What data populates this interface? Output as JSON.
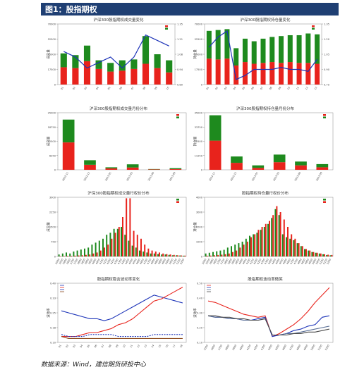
{
  "figure_title": "图1：股指期权",
  "source": "数据来源：Wind，建信期货研投中心",
  "colors": {
    "red": "#e8231c",
    "green": "#1e8a1e",
    "blue": "#1c33b8",
    "brown": "#8b4a1c"
  },
  "chart_data": [
    {
      "type": "bar",
      "title": "沪深300股指期权成交量变化",
      "ylabel": "成交量",
      "y2label": "",
      "categories": [
        "01",
        "02",
        "03",
        "04",
        "05",
        "06",
        "07",
        "08",
        "09",
        "10"
      ],
      "series": [
        {
          "values": [
            20000,
            19000,
            27000,
            18000,
            15000,
            16000,
            18000,
            24000,
            19000,
            14000
          ]
        },
        {
          "values": [
            16000,
            15000,
            18000,
            10000,
            10000,
            12000,
            11000,
            32000,
            16000,
            14000
          ]
        },
        {
          "values": [
            1.1,
            1.05,
            0.95,
            1.0,
            1.05,
            0.95,
            1.05,
            1.25,
            1.2,
            1.15
          ]
        }
      ],
      "ylim": [
        0,
        70000
      ],
      "y2lim": [
        0.8,
        1.35
      ]
    },
    {
      "type": "bar",
      "title": "沪深300股指期权持仓量变化",
      "ylabel": "持仓量",
      "y2label": "",
      "categories": [
        "01",
        "02",
        "03",
        "04",
        "05",
        "06",
        "07",
        "08",
        "09",
        "10",
        "11",
        "12",
        "13"
      ],
      "series": [
        {
          "values": [
            30000,
            29000,
            30000,
            22000,
            26000,
            24000,
            25000,
            26000,
            25000,
            26000,
            25000,
            25000,
            24000
          ]
        },
        {
          "values": [
            32000,
            34000,
            34000,
            20000,
            27000,
            26000,
            28000,
            29000,
            31000,
            31000,
            32000,
            34000,
            34000
          ]
        },
        {
          "values": [
            1.12,
            1.22,
            1.28,
            0.8,
            0.84,
            0.9,
            0.9,
            0.9,
            0.92,
            0.9,
            0.9,
            0.88,
            1.0
          ]
        }
      ],
      "ylim": [
        0,
        70000
      ],
      "y2lim": [
        0.75,
        1.35
      ]
    },
    {
      "type": "bar",
      "title": "沪深300股指期权成交量月份分布",
      "ylabel": "成交量",
      "categories": [
        "2022-11",
        "2022-12",
        "2023-01",
        "2023-03",
        "2023-06",
        "2023-09"
      ],
      "series": [
        {
          "values": [
            12000,
            2200,
            600,
            1000,
            200,
            300
          ]
        },
        {
          "values": [
            10000,
            2000,
            500,
            1400,
            150,
            400
          ]
        }
      ],
      "ylim": [
        0,
        25000
      ]
    },
    {
      "type": "bar",
      "title": "沪深300股指期权持仓量月份分布",
      "ylabel": "持仓量",
      "categories": [
        "2022-11",
        "2022-12",
        "2023-01",
        "2023-03",
        "2023-06",
        "2023-09"
      ],
      "series": [
        {
          "values": [
            23000,
            5500,
            1500,
            6000,
            3500,
            2000
          ]
        },
        {
          "values": [
            20000,
            5000,
            2000,
            6000,
            3000,
            2500
          ]
        }
      ],
      "ylim": [
        0,
        45000
      ]
    },
    {
      "type": "bar",
      "title": "沪深300股指期权成交量行权价分布",
      "ylabel": "成交量",
      "categories": [
        "3500",
        "3550",
        "3600",
        "3650",
        "3700",
        "3750",
        "3800",
        "3850",
        "3900",
        "3950",
        "4000",
        "4050",
        "4100",
        "4150",
        "4200",
        "4250",
        "4300",
        "4350",
        "4400",
        "4450",
        "4500",
        "4550",
        "4600",
        "4650",
        "4700",
        "4750",
        "4800",
        "4850",
        "4900",
        "4950",
        "5000",
        "5050",
        "5100",
        "5150",
        "5200"
      ],
      "series": [
        {
          "values": [
            100,
            150,
            200,
            150,
            250,
            300,
            350,
            400,
            450,
            600,
            700,
            800,
            900,
            1100,
            1200,
            1400,
            1400,
            1500,
            1100,
            800,
            550,
            450,
            300,
            250,
            200,
            150,
            150,
            120,
            100,
            100,
            80,
            60,
            60,
            50,
            40
          ]
        },
        {
          "values": [
            20,
            20,
            30,
            30,
            40,
            50,
            60,
            80,
            100,
            150,
            200,
            300,
            450,
            600,
            900,
            1200,
            1500,
            2000,
            2950,
            2950,
            1300,
            1100,
            900,
            600,
            400,
            300,
            250,
            200,
            150,
            120,
            100,
            80,
            60,
            50,
            40
          ]
        }
      ],
      "ylim": [
        0,
        3000
      ]
    },
    {
      "type": "bar",
      "title": "股指期权持仓量行权价分布",
      "ylabel": "持仓量",
      "categories": [
        "3500",
        "3550",
        "3600",
        "3650",
        "3700",
        "3750",
        "3800",
        "3850",
        "3900",
        "3950",
        "4000",
        "4050",
        "4100",
        "4150",
        "4200",
        "4250",
        "4300",
        "4350",
        "4400",
        "4450",
        "4500",
        "4550",
        "4600",
        "4650",
        "4700",
        "4750",
        "4800",
        "4850",
        "4900",
        "4950",
        "5000",
        "5050",
        "5100",
        "5150",
        "5200"
      ],
      "series": [
        {
          "values": [
            200,
            250,
            300,
            350,
            400,
            450,
            600,
            700,
            800,
            900,
            1000,
            1200,
            1400,
            1500,
            1600,
            1800,
            2000,
            2200,
            2600,
            3200,
            2800,
            1500,
            1300,
            1200,
            1100,
            900,
            700,
            500,
            400,
            300,
            250,
            200,
            150,
            100,
            80
          ]
        },
        {
          "values": [
            50,
            60,
            80,
            100,
            120,
            150,
            200,
            300,
            400,
            600,
            800,
            1000,
            1300,
            1500,
            1800,
            2000,
            2200,
            2400,
            2800,
            3400,
            3000,
            2500,
            2000,
            1500,
            1200,
            900,
            700,
            500,
            400,
            300,
            250,
            200,
            150,
            120,
            100
          ]
        }
      ],
      "ylim": [
        0,
        4000
      ]
    },
    {
      "type": "line",
      "title": "股指期权隐含波动率变化",
      "ylabel": "波动率",
      "x": [
        "01",
        "02",
        "03",
        "04",
        "05",
        "06",
        "07",
        "08",
        "09",
        "10",
        "11",
        "12",
        "13",
        "14",
        "15",
        "16",
        "17",
        "18"
      ],
      "series": [
        {
          "values": [
            0.26,
            0.25,
            0.24,
            0.23,
            0.22,
            0.22,
            0.21,
            0.22,
            0.24,
            0.26,
            0.28,
            0.3,
            0.32,
            0.34,
            0.33,
            0.32,
            0.31,
            0.3
          ]
        },
        {
          "values": [
            0.13,
            0.13,
            0.13,
            0.14,
            0.15,
            0.15,
            0.16,
            0.17,
            0.19,
            0.2,
            0.22,
            0.25,
            0.28,
            0.31,
            0.32,
            0.34,
            0.36,
            0.38
          ]
        },
        {
          "values": [
            0.14,
            0.13,
            0.13,
            0.13,
            0.14,
            0.14,
            0.14,
            0.14,
            0.13,
            0.13,
            0.13,
            0.13,
            0.13,
            0.14,
            0.14,
            0.14,
            0.14,
            0.14
          ]
        },
        {
          "values": [
            0.13,
            0.12,
            0.12,
            0.12,
            0.12,
            0.12,
            0.12,
            0.12,
            0.12,
            0.12,
            0.12,
            0.12,
            0.12,
            0.12,
            0.12,
            0.12,
            0.12,
            0.12
          ]
        }
      ],
      "ylim": [
        0.1,
        0.4
      ]
    },
    {
      "type": "line",
      "title": "股指期权波动率微笑",
      "ylabel": "波动率",
      "x": [
        "3500",
        "3600",
        "3700",
        "3800",
        "3900",
        "4000",
        "4100",
        "4200",
        "4300",
        "4400",
        "4500",
        "4600",
        "4700",
        "4800",
        "4900",
        "5000",
        "5100",
        "5200"
      ],
      "series": [
        {
          "values": [
            0.38,
            0.37,
            0.35,
            0.33,
            0.31,
            0.29,
            0.28,
            0.27,
            0.28,
            0.14,
            0.16,
            0.19,
            0.22,
            0.26,
            0.31,
            0.37,
            0.42,
            0.47
          ]
        },
        {
          "values": [
            0.28,
            0.27,
            0.27,
            0.26,
            0.26,
            0.25,
            0.25,
            0.26,
            0.27,
            0.14,
            0.15,
            0.16,
            0.18,
            0.19,
            0.21,
            0.22,
            0.27,
            0.28
          ]
        },
        {
          "values": [
            0.28,
            0.27,
            0.27,
            0.26,
            0.26,
            0.25,
            0.25,
            0.25,
            0.26,
            0.15,
            0.15,
            0.16,
            0.16,
            0.17,
            0.18,
            0.19,
            0.2,
            0.21
          ]
        },
        {
          "values": [
            0.28,
            0.28,
            0.27,
            0.27,
            0.26,
            0.26,
            0.25,
            0.25,
            0.26,
            0.15,
            0.15,
            0.15,
            0.16,
            0.16,
            0.17,
            0.17,
            0.18,
            0.19
          ]
        }
      ],
      "ylim": [
        0.1,
        0.5
      ]
    }
  ]
}
